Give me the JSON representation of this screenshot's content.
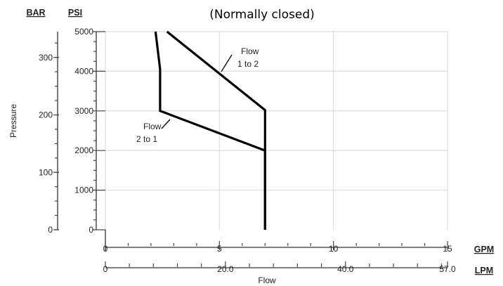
{
  "chart_data": {
    "type": "line",
    "title": "(Normally closed)",
    "xlabel": "Flow",
    "ylabel": "Pressure",
    "x_axis_gpm": {
      "unit": "GPM",
      "lim": [
        0,
        15
      ],
      "tick_labels": [
        "0",
        "5",
        "10",
        "15"
      ],
      "tick_values": [
        0,
        5,
        10,
        15
      ]
    },
    "x_axis_lpm": {
      "unit": "LPM",
      "lim": [
        0,
        57.0
      ],
      "tick_labels": [
        "0",
        "20.0",
        "40.0",
        "57.0"
      ],
      "tick_values": [
        0,
        20.0,
        40.0,
        57.0
      ]
    },
    "y_axis_psi": {
      "unit": "PSI",
      "lim": [
        0,
        5000
      ],
      "tick_labels": [
        "0",
        "1000",
        "2000",
        "3000",
        "4000",
        "5000"
      ],
      "tick_values": [
        0,
        1000,
        2000,
        3000,
        4000,
        5000
      ]
    },
    "y_axis_bar": {
      "unit": "BAR",
      "lim": [
        0,
        345
      ],
      "tick_labels": [
        "0",
        "100",
        "200",
        "300"
      ],
      "tick_values": [
        0,
        100,
        200,
        300
      ]
    },
    "grid": true,
    "series": [
      {
        "name": "Flow 1 to 2",
        "annotation": [
          "Flow",
          "1 to 2"
        ],
        "x_unit": "GPM",
        "y_unit": "PSI",
        "points": [
          [
            2.7,
            5000
          ],
          [
            7.0,
            3020
          ],
          [
            7.0,
            0
          ]
        ]
      },
      {
        "name": "Flow 2 to 1",
        "annotation": [
          "Flow",
          "2 to 1"
        ],
        "x_unit": "GPM",
        "y_unit": "PSI",
        "points": [
          [
            2.2,
            5000
          ],
          [
            2.4,
            4050
          ],
          [
            2.4,
            3000
          ],
          [
            7.0,
            2000
          ],
          [
            7.0,
            0
          ]
        ]
      }
    ]
  }
}
